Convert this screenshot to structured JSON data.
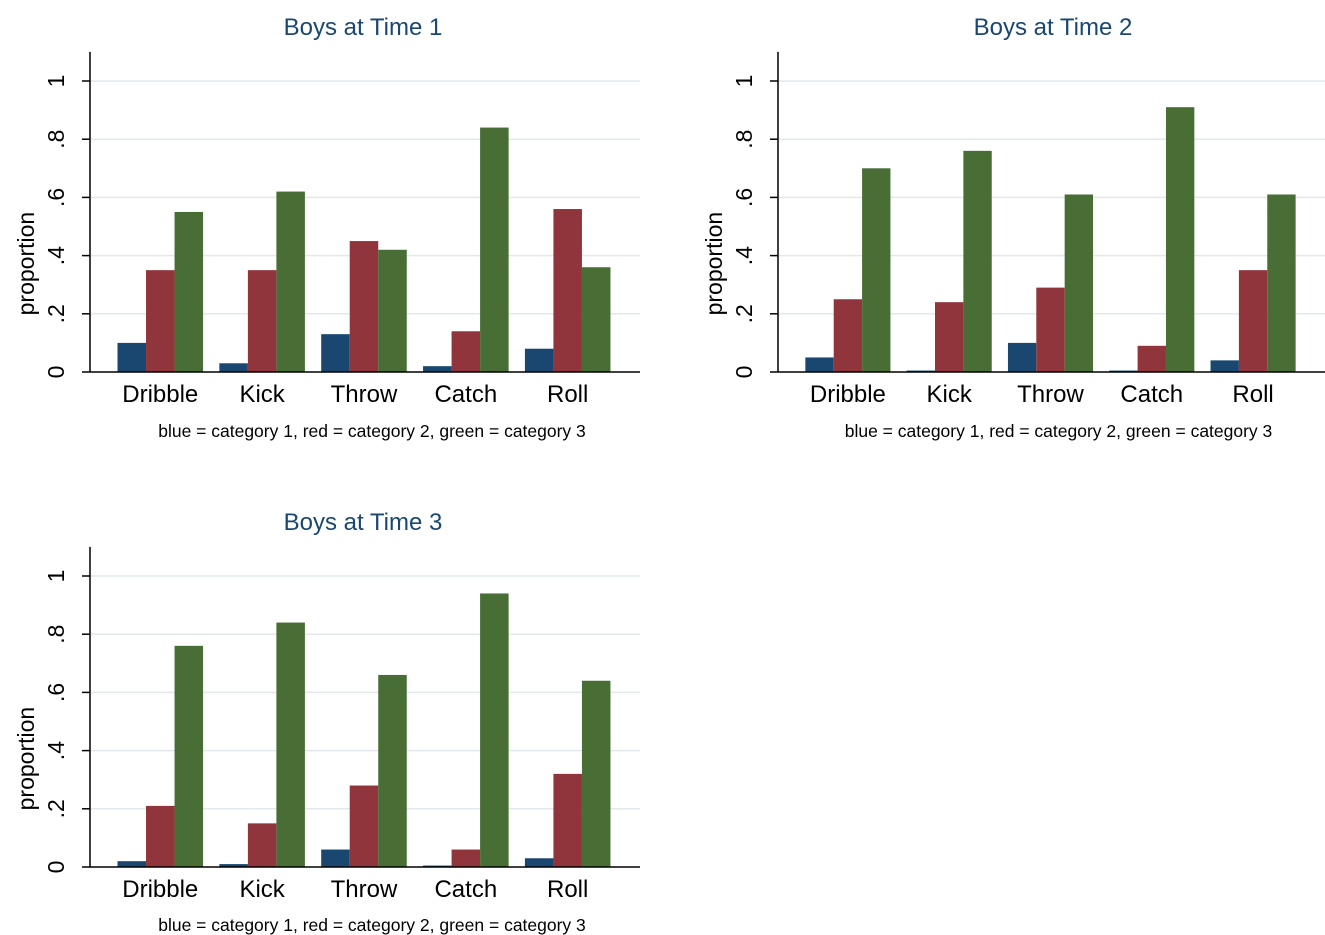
{
  "figure": {
    "background": "#ffffff"
  },
  "colors": {
    "category_1": "#1a476f",
    "category_2": "#90353b",
    "category_3": "#486e35",
    "title": "#1a476f",
    "grid": "#e3e8ec",
    "axis": "#000000"
  },
  "chart_data": [
    {
      "type": "bar",
      "title": "Boys at Time 1",
      "ylabel": "proportion",
      "note": "blue = category 1, red = category 2, green = category 3",
      "categories": [
        "Dribble",
        "Kick",
        "Throw",
        "Catch",
        "Roll"
      ],
      "series": [
        {
          "values": [
            0.1,
            0.03,
            0.13,
            0.02,
            0.08
          ]
        },
        {
          "values": [
            0.35,
            0.35,
            0.45,
            0.14,
            0.56
          ]
        },
        {
          "values": [
            0.55,
            0.62,
            0.42,
            0.84,
            0.36
          ]
        }
      ],
      "yticks": [
        {
          "value": 0,
          "label": "0"
        },
        {
          "value": 0.2,
          "label": ".2"
        },
        {
          "value": 0.4,
          "label": ".4"
        },
        {
          "value": 0.6,
          "label": ".6"
        },
        {
          "value": 0.8,
          "label": ".8"
        },
        {
          "value": 1,
          "label": "1"
        }
      ],
      "ylim": [
        0,
        1.1
      ],
      "grid": true
    },
    {
      "type": "bar",
      "title": "Boys at Time 2",
      "ylabel": "proportion",
      "note": "blue = category 1, red = category 2, green = category 3",
      "categories": [
        "Dribble",
        "Kick",
        "Throw",
        "Catch",
        "Roll"
      ],
      "series": [
        {
          "values": [
            0.05,
            0.005,
            0.1,
            0.005,
            0.04
          ]
        },
        {
          "values": [
            0.25,
            0.24,
            0.29,
            0.09,
            0.35
          ]
        },
        {
          "values": [
            0.7,
            0.76,
            0.61,
            0.91,
            0.61
          ]
        }
      ],
      "yticks": [
        {
          "value": 0,
          "label": "0"
        },
        {
          "value": 0.2,
          "label": ".2"
        },
        {
          "value": 0.4,
          "label": ".4"
        },
        {
          "value": 0.6,
          "label": ".6"
        },
        {
          "value": 0.8,
          "label": ".8"
        },
        {
          "value": 1,
          "label": "1"
        }
      ],
      "ylim": [
        0,
        1.1
      ],
      "grid": true
    },
    {
      "type": "bar",
      "title": "Boys at Time 3",
      "ylabel": "proportion",
      "note": "blue = category 1, red = category 2, green = category 3",
      "categories": [
        "Dribble",
        "Kick",
        "Throw",
        "Catch",
        "Roll"
      ],
      "series": [
        {
          "values": [
            0.02,
            0.01,
            0.06,
            0.005,
            0.03
          ]
        },
        {
          "values": [
            0.21,
            0.15,
            0.28,
            0.06,
            0.32
          ]
        },
        {
          "values": [
            0.76,
            0.84,
            0.66,
            0.94,
            0.64
          ]
        }
      ],
      "yticks": [
        {
          "value": 0,
          "label": "0"
        },
        {
          "value": 0.2,
          "label": ".2"
        },
        {
          "value": 0.4,
          "label": ".4"
        },
        {
          "value": 0.6,
          "label": ".6"
        },
        {
          "value": 0.8,
          "label": ".8"
        },
        {
          "value": 1,
          "label": "1"
        }
      ],
      "ylim": [
        0,
        1.1
      ],
      "grid": true
    }
  ]
}
